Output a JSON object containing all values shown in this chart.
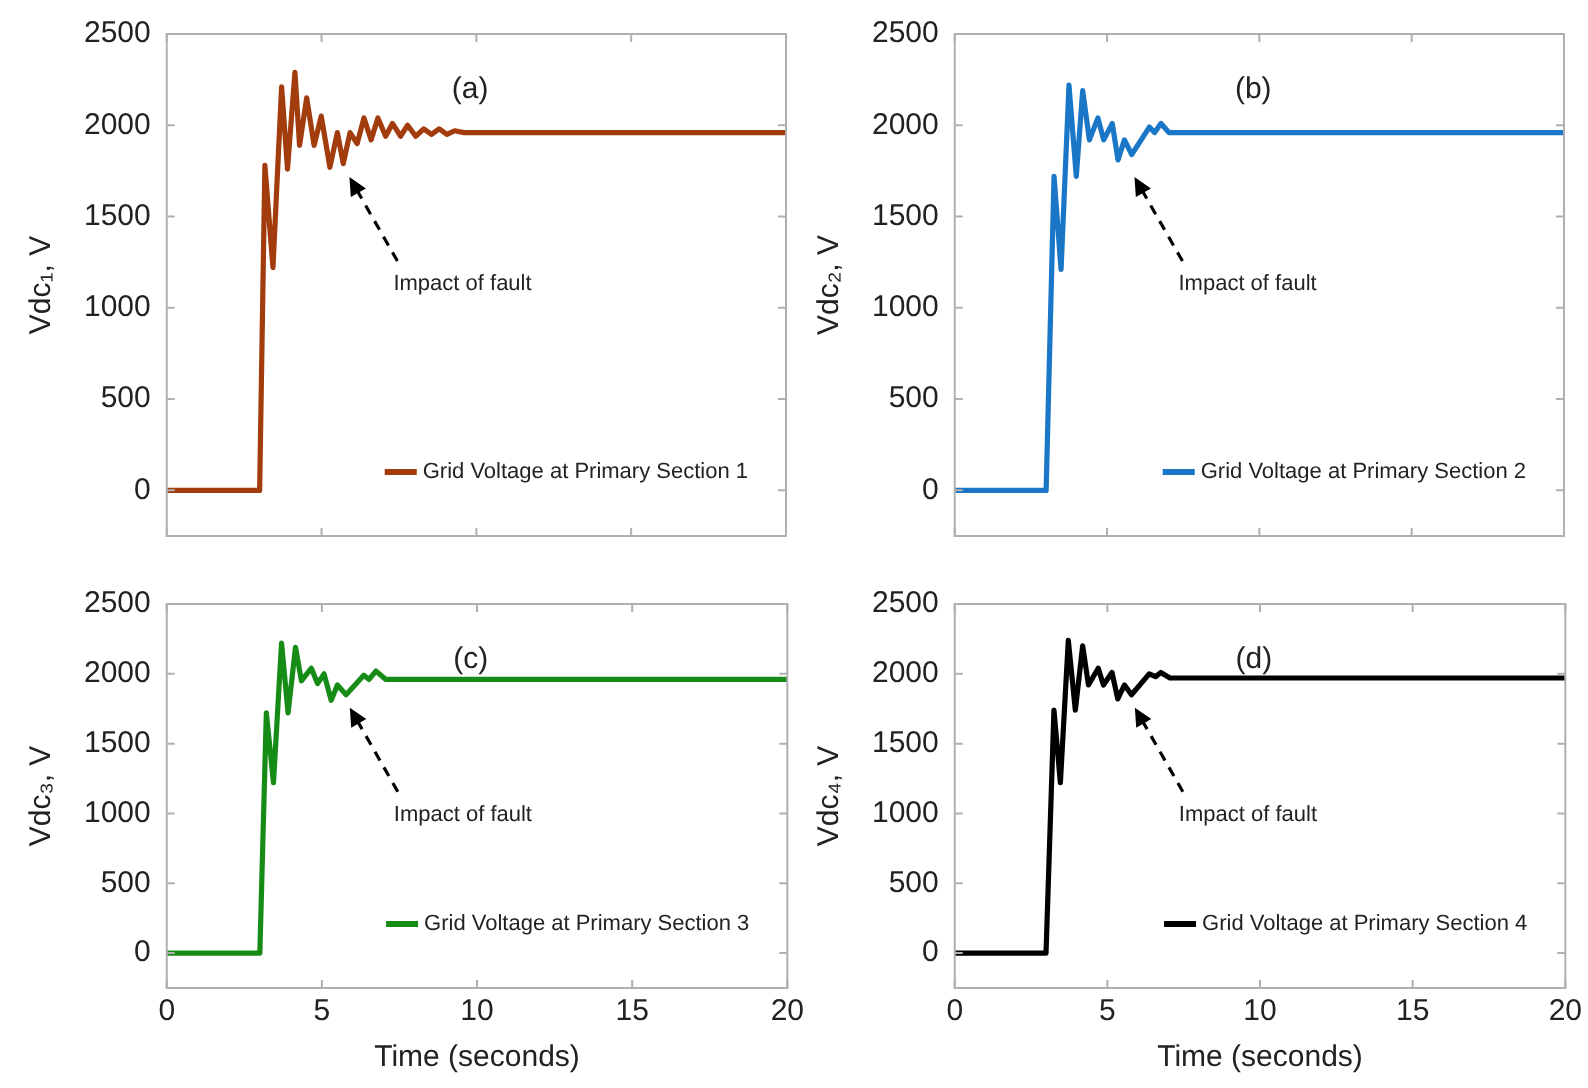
{
  "chart_data": [
    {
      "type": "line",
      "ylabel": "Vdc₁, V",
      "xlim": [
        0,
        20
      ],
      "ylim": [
        -250,
        2500
      ],
      "xticks": [
        0,
        5,
        10,
        15,
        20
      ],
      "yticks": [
        0,
        500,
        1000,
        1500,
        2000,
        2500
      ],
      "tick_labels": "y",
      "legend": "bottom right",
      "annotations": [
        "(a)",
        "Impact of fault"
      ],
      "series": [
        {
          "name": "Grid Voltage at Primary Section 1",
          "color": "#a23c0d",
          "x": [
            0,
            3.0,
            3.17,
            3.43,
            3.71,
            3.9,
            4.14,
            4.29,
            4.52,
            4.76,
            4.99,
            5.27,
            5.51,
            5.7,
            5.92,
            6.15,
            6.37,
            6.6,
            6.82,
            7.07,
            7.29,
            7.55,
            7.78,
            8.04,
            8.3,
            8.55,
            8.8,
            9.05,
            9.3,
            9.6,
            20
          ],
          "values": [
            0,
            0,
            1780,
            1220,
            2210,
            1760,
            2290,
            1890,
            2150,
            1890,
            2050,
            1770,
            1960,
            1790,
            1960,
            1900,
            2040,
            1920,
            2040,
            1940,
            2010,
            1940,
            2000,
            1940,
            1980,
            1950,
            1980,
            1950,
            1970,
            1960,
            1960
          ]
        }
      ]
    },
    {
      "type": "line",
      "ylabel": "Vdc₂, V",
      "xlim": [
        0,
        20
      ],
      "ylim": [
        -250,
        2500
      ],
      "xticks": [
        0,
        5,
        10,
        15,
        20
      ],
      "yticks": [
        0,
        500,
        1000,
        1500,
        2000,
        2500
      ],
      "tick_labels": "y",
      "legend": "bottom right",
      "annotations": [
        "(b)",
        "Impact of fault"
      ],
      "series": [
        {
          "name": "Grid Voltage at Primary Section 2",
          "color": "#1a76c6",
          "x": [
            0,
            3.0,
            3.26,
            3.49,
            3.75,
            3.99,
            4.2,
            4.42,
            4.7,
            4.89,
            5.17,
            5.36,
            5.57,
            5.81,
            6.39,
            6.56,
            6.77,
            7.03,
            8.32,
            20
          ],
          "values": [
            0,
            0,
            1720,
            1210,
            2220,
            1720,
            2190,
            1920,
            2040,
            1920,
            2010,
            1810,
            1920,
            1840,
            1990,
            1960,
            2010,
            1960,
            1960,
            1960
          ]
        }
      ]
    },
    {
      "type": "line",
      "ylabel": "Vdc₃, V",
      "xlabel": "Time (seconds)",
      "xlim": [
        0,
        20
      ],
      "ylim": [
        -250,
        2500
      ],
      "xticks": [
        0,
        5,
        10,
        15,
        20
      ],
      "yticks": [
        0,
        500,
        1000,
        1500,
        2000,
        2500
      ],
      "legend": "bottom right",
      "annotations": [
        "(c)",
        "Impact of fault"
      ],
      "series": [
        {
          "name": "Grid Voltage at Primary Section 3",
          "color": "#168c16",
          "x": [
            0,
            3.0,
            3.21,
            3.44,
            3.7,
            3.91,
            4.15,
            4.34,
            4.66,
            4.86,
            5.07,
            5.3,
            5.5,
            5.78,
            6.35,
            6.52,
            6.74,
            7.06,
            20
          ],
          "values": [
            0,
            0,
            1720,
            1220,
            2220,
            1720,
            2190,
            1950,
            2040,
            1930,
            2000,
            1810,
            1920,
            1850,
            1990,
            1960,
            2020,
            1960,
            1960
          ]
        }
      ]
    },
    {
      "type": "line",
      "ylabel": "Vdc₄, V",
      "xlabel": "Time (seconds)",
      "xlim": [
        0,
        20
      ],
      "ylim": [
        -250,
        2500
      ],
      "xticks": [
        0,
        5,
        10,
        15,
        20
      ],
      "yticks": [
        0,
        500,
        1000,
        1500,
        2000,
        2500
      ],
      "legend": "bottom right",
      "annotations": [
        "(d)",
        "Impact of fault"
      ],
      "series": [
        {
          "name": "Grid Voltage at Primary Section 4",
          "color": "#000000",
          "x": [
            0,
            2.99,
            3.25,
            3.46,
            3.72,
            3.95,
            4.19,
            4.38,
            4.7,
            4.87,
            5.15,
            5.34,
            5.56,
            5.79,
            6.37,
            6.58,
            6.75,
            7.05,
            20
          ],
          "values": [
            0,
            0,
            1740,
            1220,
            2240,
            1740,
            2200,
            1920,
            2040,
            1920,
            2010,
            1820,
            1920,
            1850,
            2000,
            1980,
            2010,
            1970,
            1970
          ]
        }
      ]
    }
  ]
}
